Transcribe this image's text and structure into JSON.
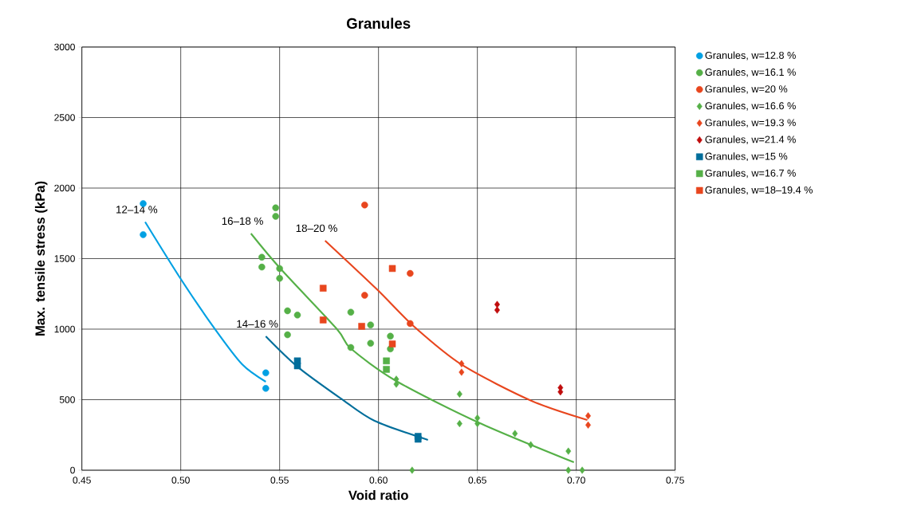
{
  "chart_data": {
    "type": "scatter",
    "title": "Granules",
    "xlabel": "Void ratio",
    "ylabel": "Max. tensile stress (kPa)",
    "xlim": [
      0.45,
      0.75
    ],
    "xticks": [
      {
        "value": 0.45,
        "label": "0.45"
      },
      {
        "value": 0.5,
        "label": "0.50"
      },
      {
        "value": 0.55,
        "label": "0.55"
      },
      {
        "value": 0.6,
        "label": "0.60"
      },
      {
        "value": 0.65,
        "label": "0.65"
      },
      {
        "value": 0.7,
        "label": "0.70"
      },
      {
        "value": 0.75,
        "label": "0.75"
      }
    ],
    "ylim": [
      0,
      3000
    ],
    "yticks": [
      0,
      500,
      1000,
      1500,
      2000,
      2500,
      3000
    ],
    "grid": true,
    "legend": "right",
    "series": [
      {
        "name": "Granules, w=12.8 %",
        "color": "#00a0e3",
        "marker": "circle",
        "x": [
          0.481,
          0.481,
          0.543,
          0.543
        ],
        "values": [
          1890,
          1670,
          690,
          580
        ]
      },
      {
        "name": "Granules, w=16.1 %",
        "color": "#55b047",
        "marker": "circle",
        "x": [
          0.548,
          0.548,
          0.541,
          0.541,
          0.55,
          0.55,
          0.554,
          0.559,
          0.554,
          0.586,
          0.586,
          0.596,
          0.596,
          0.606,
          0.606
        ],
        "values": [
          1860,
          1800,
          1510,
          1440,
          1430,
          1360,
          1130,
          1100,
          960,
          1120,
          870,
          1030,
          900,
          950,
          860
        ]
      },
      {
        "name": "Granules, w=20 %",
        "color": "#e8461e",
        "marker": "circle",
        "x": [
          0.593,
          0.593,
          0.616,
          0.616
        ],
        "values": [
          1880,
          1240,
          1395,
          1040
        ]
      },
      {
        "name": "Granules, w=16.6 %",
        "color": "#55b047",
        "marker": "diamond",
        "x": [
          0.609,
          0.609,
          0.641,
          0.641,
          0.65,
          0.65,
          0.669,
          0.677,
          0.696,
          0.696,
          0.703,
          0.617
        ],
        "values": [
          645,
          610,
          540,
          330,
          370,
          330,
          260,
          180,
          135,
          0,
          0,
          0
        ]
      },
      {
        "name": "Granules, w=19.3 %",
        "color": "#e8461e",
        "marker": "diamond",
        "x": [
          0.642,
          0.642,
          0.706,
          0.706
        ],
        "values": [
          755,
          695,
          385,
          320
        ]
      },
      {
        "name": "Granules, w=21.4 %",
        "color": "#c00d0d",
        "marker": "diamond",
        "x": [
          0.66,
          0.66,
          0.692,
          0.692
        ],
        "values": [
          1175,
          1135,
          585,
          555
        ]
      },
      {
        "name": "Granules, w=15 %",
        "color": "#006e9b",
        "marker": "square",
        "x": [
          0.559,
          0.559,
          0.62,
          0.62
        ],
        "values": [
          775,
          740,
          240,
          220
        ]
      },
      {
        "name": "Granules, w=16.7 %",
        "color": "#55b047",
        "marker": "square",
        "x": [
          0.604,
          0.604
        ],
        "values": [
          775,
          715
        ]
      },
      {
        "name": "Granules, w=18–19.4 %",
        "color": "#e8461e",
        "marker": "square",
        "x": [
          0.572,
          0.572,
          0.5915,
          0.607,
          0.607
        ],
        "values": [
          1290,
          1065,
          1020,
          1430,
          895
        ]
      },
      {
        "type": "line",
        "color": "#00a0e3",
        "marker": "none",
        "x": [
          0.482,
          0.5,
          0.517,
          0.531,
          0.543
        ],
        "values": [
          1760,
          1356,
          1006,
          751,
          627
        ]
      },
      {
        "type": "line",
        "color": "#006e9b",
        "marker": "none",
        "x": [
          0.543,
          0.559,
          0.581,
          0.598,
          0.625
        ],
        "values": [
          949,
          734,
          508,
          350,
          215
        ]
      },
      {
        "type": "line",
        "color": "#55b047",
        "marker": "none",
        "x": [
          0.5355,
          0.5504,
          0.579,
          0.5859,
          0.6089,
          0.6504,
          0.6988
        ],
        "values": [
          1678,
          1429,
          1000,
          864,
          633,
          339,
          56
        ]
      },
      {
        "type": "line",
        "color": "#e8461e",
        "marker": "none",
        "x": [
          0.573,
          0.5992,
          0.6181,
          0.6423,
          0.6774,
          0.7056
        ],
        "values": [
          1627,
          1282,
          1017,
          746,
          492,
          356
        ]
      }
    ],
    "annotations": [
      "12–14 %",
      "14–16 %",
      "16–18 %",
      "18–20 %"
    ]
  }
}
